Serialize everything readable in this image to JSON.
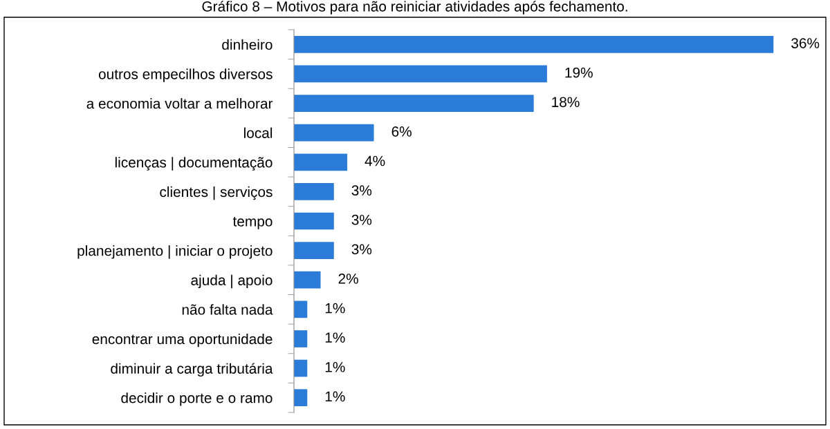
{
  "chart_data": {
    "type": "bar",
    "orientation": "horizontal",
    "title": "Gráfico 8 – Motivos para não reiniciar atividades após fechamento.",
    "categories": [
      "dinheiro",
      "outros empecilhos diversos",
      "a economia voltar a melhorar",
      "local",
      "licenças | documentação",
      "clientes | serviços",
      "tempo",
      "planejamento | iniciar o projeto",
      "ajuda | apoio",
      "não falta nada",
      "encontrar uma oportunidade",
      "diminuir a carga tributária",
      "decidir o porte e o ramo"
    ],
    "values": [
      36,
      19,
      18,
      6,
      4,
      3,
      3,
      3,
      2,
      1,
      1,
      1,
      1
    ],
    "value_labels": [
      "36%",
      "19%",
      "18%",
      "6%",
      "4%",
      "3%",
      "3%",
      "3%",
      "2%",
      "1%",
      "1%",
      "1%",
      "1%"
    ],
    "color": "#2b7bd9",
    "grid": false,
    "legend": false
  }
}
